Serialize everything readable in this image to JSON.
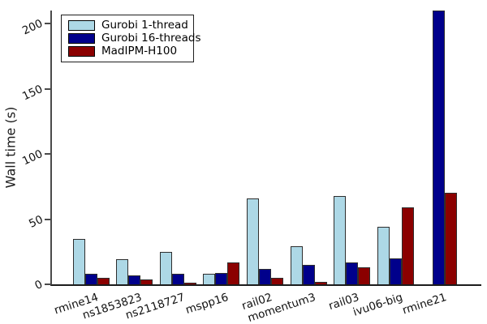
{
  "chart_data": {
    "type": "bar",
    "title": "",
    "xlabel": "",
    "ylabel": "Wall time (s)",
    "categories": [
      "rmine14",
      "ns1853823",
      "ns2118727",
      "mspp16",
      "rail02",
      "momentum3",
      "rail03",
      "ivu06-big",
      "rmine21"
    ],
    "series": [
      {
        "name": "Gurobi 1-thread",
        "color": "#add8e6",
        "values": [
          35,
          19,
          25,
          8,
          66,
          29,
          68,
          44,
          null
        ]
      },
      {
        "name": "Gurobi 16-threads",
        "color": "#00008b",
        "values": [
          8,
          7,
          8,
          9,
          12,
          15,
          17,
          20,
          210
        ]
      },
      {
        "name": "MadIPM-H100",
        "color": "#8b0000",
        "values": [
          5,
          4,
          1,
          17,
          5,
          2,
          13,
          59,
          70
        ]
      }
    ],
    "yticks": [
      0,
      50,
      100,
      150,
      200
    ],
    "ylim": [
      0,
      210
    ],
    "grid": false,
    "legend_position": "upper left",
    "background_color": "#ffffff"
  }
}
